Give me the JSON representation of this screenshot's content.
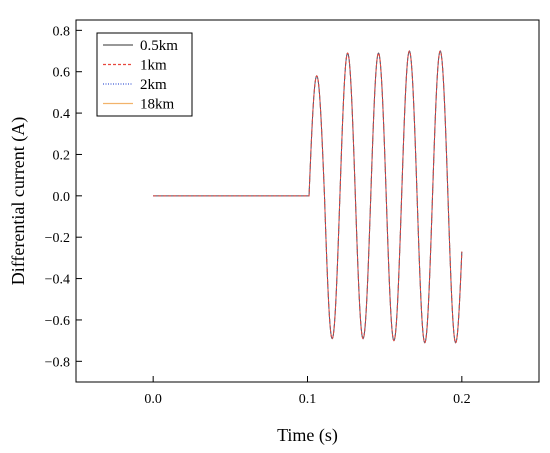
{
  "chart_data": {
    "type": "line",
    "xlabel": "Time (s)",
    "ylabel": "Differential current (A)",
    "xlim": [
      -0.05,
      0.25
    ],
    "ylim": [
      -0.9,
      0.85
    ],
    "xticks": [
      0.0,
      0.1,
      0.2
    ],
    "xtick_labels": [
      "0.0",
      "0.1",
      "0.2"
    ],
    "yticks": [
      -0.8,
      -0.6,
      -0.4,
      -0.2,
      0.0,
      0.2,
      0.4,
      0.6,
      0.8
    ],
    "ytick_labels": [
      "−0.8",
      "−0.6",
      "−0.4",
      "−0.2",
      "0.0",
      "0.2",
      "0.4",
      "0.6",
      "0.8"
    ],
    "grid": false,
    "legend_position": "top-left",
    "series": [
      {
        "name": "0.5km",
        "color": "#5a5a5a",
        "line_style": "solid",
        "x": [
          0.0,
          0.1,
          0.101,
          0.106,
          0.111,
          0.116,
          0.121,
          0.126,
          0.131,
          0.136,
          0.141,
          0.146,
          0.151,
          0.156,
          0.161,
          0.166,
          0.171,
          0.176,
          0.181,
          0.186,
          0.191,
          0.196,
          0.2
        ],
        "y": [
          0.0,
          0.0,
          0.0,
          0.58,
          0.0,
          -0.69,
          0.0,
          0.69,
          0.0,
          -0.69,
          0.0,
          0.69,
          0.0,
          -0.7,
          0.0,
          0.7,
          0.0,
          -0.71,
          0.0,
          0.7,
          0.0,
          -0.71,
          -0.27
        ]
      },
      {
        "name": "1km",
        "color": "#e8473d",
        "line_style": "dashed",
        "x": [
          0.0,
          0.1,
          0.101,
          0.106,
          0.111,
          0.116,
          0.121,
          0.126,
          0.131,
          0.136,
          0.141,
          0.146,
          0.151,
          0.156,
          0.161,
          0.166,
          0.171,
          0.176,
          0.181,
          0.186,
          0.191,
          0.196,
          0.2
        ],
        "y": [
          0.0,
          0.0,
          0.0,
          0.58,
          0.0,
          -0.69,
          0.0,
          0.69,
          0.0,
          -0.69,
          0.0,
          0.69,
          0.0,
          -0.7,
          0.0,
          0.7,
          0.0,
          -0.71,
          0.0,
          0.7,
          0.0,
          -0.71,
          -0.27
        ]
      },
      {
        "name": "2km",
        "color": "#3f5bd6",
        "line_style": "dotted",
        "x": [
          0.0,
          0.1,
          0.101,
          0.106,
          0.111,
          0.116,
          0.121,
          0.126,
          0.131,
          0.136,
          0.141,
          0.146,
          0.151,
          0.156,
          0.161,
          0.166,
          0.171,
          0.176,
          0.181,
          0.186,
          0.191,
          0.196,
          0.2
        ],
        "y": [
          0.0,
          0.0,
          0.0,
          0.58,
          0.0,
          -0.69,
          0.0,
          0.69,
          0.0,
          -0.69,
          0.0,
          0.69,
          0.0,
          -0.7,
          0.0,
          0.7,
          0.0,
          -0.71,
          0.0,
          0.7,
          0.0,
          -0.71,
          -0.27
        ]
      },
      {
        "name": "18km",
        "color": "#f2b36b",
        "line_style": "solid",
        "x": [
          0.0,
          0.1,
          0.101,
          0.106,
          0.111,
          0.116,
          0.121,
          0.126,
          0.131,
          0.136,
          0.141,
          0.146,
          0.151,
          0.156,
          0.161,
          0.166,
          0.171,
          0.176,
          0.181,
          0.186,
          0.191,
          0.196,
          0.2
        ],
        "y": [
          0.0,
          0.0,
          0.0,
          0.58,
          0.0,
          -0.69,
          0.0,
          0.69,
          0.0,
          -0.69,
          0.0,
          0.69,
          0.0,
          -0.7,
          0.0,
          0.7,
          0.0,
          -0.71,
          0.0,
          0.7,
          0.0,
          -0.71,
          -0.27
        ]
      }
    ]
  }
}
